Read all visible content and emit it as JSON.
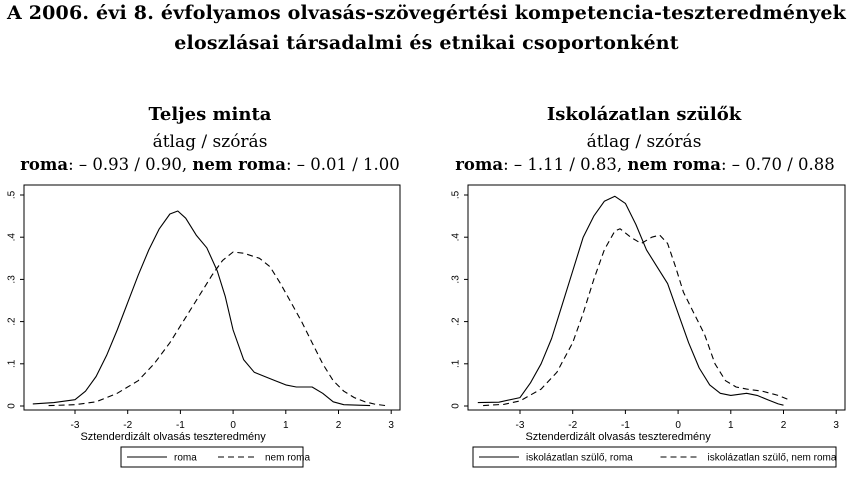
{
  "title": {
    "line1": "A 2006. évi 8. évfolyamos olvasás-szövegértési kompetencia-teszteredmények",
    "line2": "eloszlásai társadalmi és etnikai csoportonként"
  },
  "panels": [
    {
      "title": "Teljes minta",
      "subtitle": "átlag / szórás",
      "stats": {
        "a_label": "roma",
        "a_value": ": – 0.93 / 0.90, ",
        "b_label": "nem roma",
        "b_value": ": – 0.01 / 1.00"
      }
    },
    {
      "title": "Iskolázatlan szülők",
      "subtitle": "átlag / szórás",
      "stats": {
        "a_label": "roma",
        "a_value": ": – 1.11 / 0.83, ",
        "b_label": "nem roma",
        "b_value": ": – 0.70 / 0.88"
      }
    }
  ],
  "chart_data": [
    {
      "type": "line",
      "title": "Teljes minta",
      "xlabel": "Sztenderdizált olvasás teszteredmény",
      "ylabel": "",
      "xlim": [
        -3.8,
        3.1
      ],
      "ylim": [
        0,
        0.5
      ],
      "xticks": [
        -3,
        -2,
        -1,
        0,
        1,
        2,
        3
      ],
      "xtick_labels": [
        "-3",
        "-2",
        "-1",
        "0",
        "1",
        "2",
        "3"
      ],
      "yticks": [
        0,
        0.1,
        0.2,
        0.3,
        0.4,
        0.5
      ],
      "ytick_labels": [
        "0",
        ".1",
        ".2",
        ".3",
        ".4",
        ".5"
      ],
      "grid": false,
      "legend_position": "bottom",
      "series": [
        {
          "name": "roma",
          "style": "solid",
          "points": [
            [
              -3.8,
              0.005
            ],
            [
              -3.4,
              0.008
            ],
            [
              -3.0,
              0.015
            ],
            [
              -2.8,
              0.035
            ],
            [
              -2.6,
              0.07
            ],
            [
              -2.4,
              0.12
            ],
            [
              -2.2,
              0.18
            ],
            [
              -2.0,
              0.245
            ],
            [
              -1.8,
              0.31
            ],
            [
              -1.6,
              0.37
            ],
            [
              -1.4,
              0.42
            ],
            [
              -1.2,
              0.455
            ],
            [
              -1.05,
              0.462
            ],
            [
              -0.9,
              0.445
            ],
            [
              -0.7,
              0.405
            ],
            [
              -0.5,
              0.375
            ],
            [
              -0.3,
              0.32
            ],
            [
              -0.15,
              0.26
            ],
            [
              0.0,
              0.18
            ],
            [
              0.2,
              0.11
            ],
            [
              0.4,
              0.08
            ],
            [
              0.6,
              0.07
            ],
            [
              0.8,
              0.06
            ],
            [
              1.0,
              0.05
            ],
            [
              1.2,
              0.045
            ],
            [
              1.5,
              0.045
            ],
            [
              1.7,
              0.03
            ],
            [
              1.9,
              0.01
            ],
            [
              2.1,
              0.003
            ],
            [
              2.6,
              0.001
            ]
          ]
        },
        {
          "name": "nem roma",
          "style": "dashed",
          "points": [
            [
              -3.5,
              0.001
            ],
            [
              -3.0,
              0.003
            ],
            [
              -2.6,
              0.01
            ],
            [
              -2.2,
              0.03
            ],
            [
              -1.8,
              0.06
            ],
            [
              -1.5,
              0.1
            ],
            [
              -1.2,
              0.15
            ],
            [
              -0.9,
              0.21
            ],
            [
              -0.6,
              0.27
            ],
            [
              -0.4,
              0.31
            ],
            [
              -0.2,
              0.345
            ],
            [
              0.0,
              0.365
            ],
            [
              0.2,
              0.362
            ],
            [
              0.5,
              0.35
            ],
            [
              0.7,
              0.33
            ],
            [
              0.9,
              0.29
            ],
            [
              1.1,
              0.245
            ],
            [
              1.3,
              0.2
            ],
            [
              1.5,
              0.15
            ],
            [
              1.7,
              0.1
            ],
            [
              1.9,
              0.06
            ],
            [
              2.1,
              0.035
            ],
            [
              2.3,
              0.02
            ],
            [
              2.5,
              0.01
            ],
            [
              2.7,
              0.004
            ],
            [
              2.9,
              0.001
            ]
          ]
        }
      ]
    },
    {
      "type": "line",
      "title": "Iskolázatlan szülők",
      "xlabel": "Sztenderdizált olvasás teszteredmény",
      "ylabel": "",
      "xlim": [
        -3.8,
        3.1
      ],
      "ylim": [
        0,
        0.5
      ],
      "xticks": [
        -3,
        -2,
        -1,
        0,
        1,
        2,
        3
      ],
      "xtick_labels": [
        "-3",
        "-2",
        "-1",
        "0",
        "1",
        "2",
        "3"
      ],
      "yticks": [
        0,
        0.1,
        0.2,
        0.3,
        0.4,
        0.5
      ],
      "ytick_labels": [
        "0",
        ".1",
        ".2",
        ".3",
        ".4",
        ".5"
      ],
      "grid": false,
      "legend_position": "bottom",
      "series": [
        {
          "name": "iskolázatlan szülő, roma",
          "style": "solid",
          "points": [
            [
              -3.8,
              0.008
            ],
            [
              -3.4,
              0.009
            ],
            [
              -3.0,
              0.02
            ],
            [
              -2.8,
              0.055
            ],
            [
              -2.6,
              0.1
            ],
            [
              -2.4,
              0.16
            ],
            [
              -2.2,
              0.24
            ],
            [
              -2.0,
              0.32
            ],
            [
              -1.8,
              0.4
            ],
            [
              -1.6,
              0.45
            ],
            [
              -1.4,
              0.485
            ],
            [
              -1.2,
              0.497
            ],
            [
              -1.0,
              0.48
            ],
            [
              -0.8,
              0.43
            ],
            [
              -0.6,
              0.37
            ],
            [
              -0.4,
              0.33
            ],
            [
              -0.2,
              0.29
            ],
            [
              0.0,
              0.22
            ],
            [
              0.2,
              0.15
            ],
            [
              0.4,
              0.09
            ],
            [
              0.6,
              0.05
            ],
            [
              0.8,
              0.03
            ],
            [
              1.0,
              0.025
            ],
            [
              1.3,
              0.03
            ],
            [
              1.5,
              0.025
            ],
            [
              1.7,
              0.015
            ],
            [
              1.9,
              0.005
            ],
            [
              2.0,
              0.002
            ]
          ]
        },
        {
          "name": "iskolázatlan szülő, nem roma",
          "style": "dashed",
          "points": [
            [
              -3.7,
              0.001
            ],
            [
              -3.3,
              0.004
            ],
            [
              -3.0,
              0.012
            ],
            [
              -2.6,
              0.04
            ],
            [
              -2.3,
              0.08
            ],
            [
              -2.0,
              0.15
            ],
            [
              -1.8,
              0.22
            ],
            [
              -1.6,
              0.3
            ],
            [
              -1.4,
              0.37
            ],
            [
              -1.2,
              0.415
            ],
            [
              -1.1,
              0.42
            ],
            [
              -0.9,
              0.4
            ],
            [
              -0.7,
              0.385
            ],
            [
              -0.5,
              0.4
            ],
            [
              -0.35,
              0.405
            ],
            [
              -0.2,
              0.385
            ],
            [
              -0.05,
              0.33
            ],
            [
              0.1,
              0.27
            ],
            [
              0.3,
              0.22
            ],
            [
              0.5,
              0.17
            ],
            [
              0.7,
              0.1
            ],
            [
              0.9,
              0.06
            ],
            [
              1.1,
              0.045
            ],
            [
              1.3,
              0.04
            ],
            [
              1.6,
              0.035
            ],
            [
              1.9,
              0.025
            ],
            [
              2.1,
              0.015
            ]
          ]
        }
      ]
    }
  ]
}
